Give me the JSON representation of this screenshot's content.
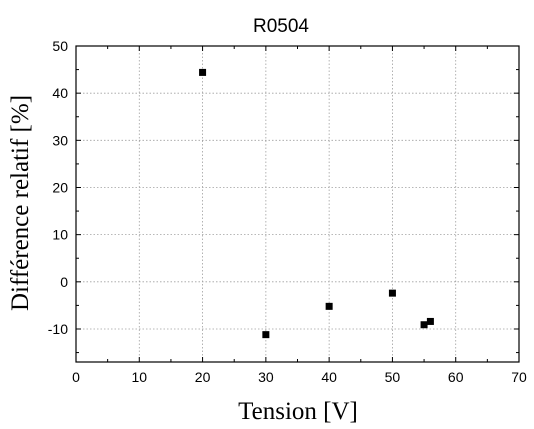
{
  "chart_data": {
    "type": "scatter",
    "title": "R0504",
    "xlabel": "Tension [V]",
    "ylabel": "Différence relatif [%]",
    "xlim": [
      0,
      70
    ],
    "ylim": [
      -17,
      50
    ],
    "x_ticks": [
      "0",
      "10",
      "20",
      "30",
      "40",
      "50",
      "60",
      "70"
    ],
    "y_ticks": [
      "-10",
      "0",
      "10",
      "20",
      "30",
      "40",
      "50"
    ],
    "grid": true,
    "marker_color": "#000000",
    "series": [
      {
        "x": [
          20,
          30,
          40,
          50,
          55,
          56
        ],
        "y": [
          44.4,
          -11.2,
          -5.2,
          -2.4,
          -9.1,
          -8.4
        ]
      }
    ]
  }
}
